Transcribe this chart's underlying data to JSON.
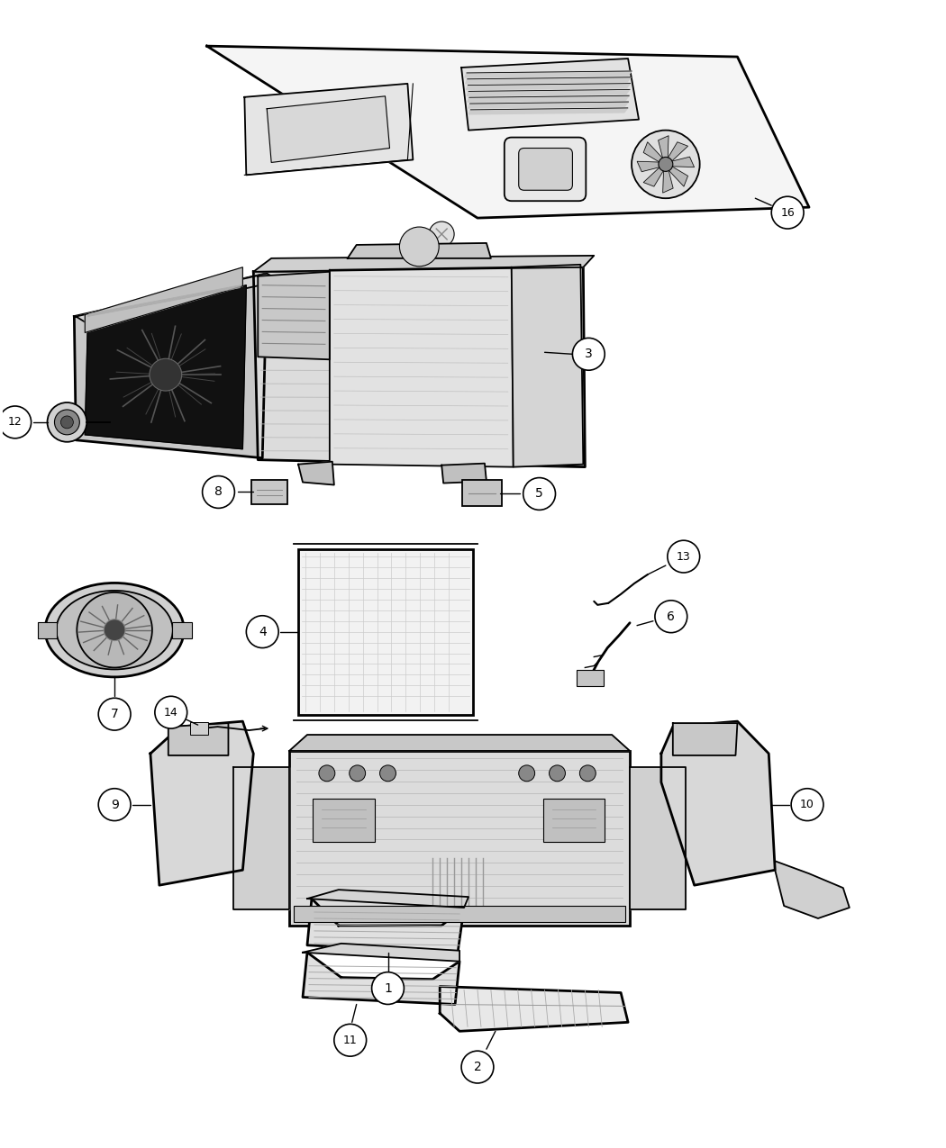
{
  "background_color": "#ffffff",
  "line_color": "#000000",
  "figsize": [
    10.5,
    12.75
  ],
  "dpi": 100
}
